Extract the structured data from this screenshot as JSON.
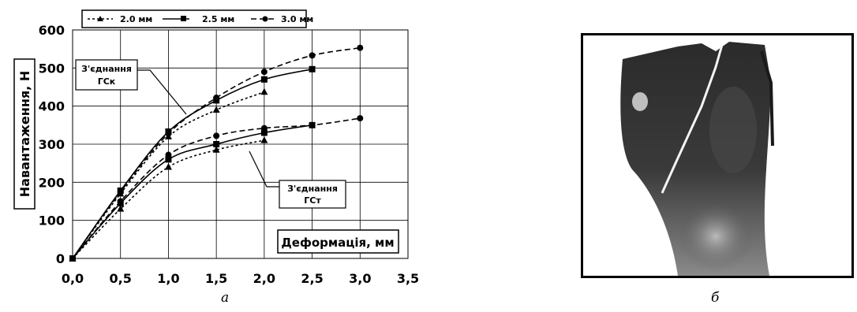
{
  "chart_data": {
    "type": "line",
    "xlabel": "Деформація, мм",
    "ylabel": "Навантаження, Н",
    "xlim": [
      0,
      3.5
    ],
    "ylim": [
      0,
      600
    ],
    "x_ticks": [
      "0,0",
      "0,5",
      "1,0",
      "1,5",
      "2,0",
      "2,5",
      "3,0",
      "3,5"
    ],
    "y_ticks": [
      "0",
      "100",
      "200",
      "300",
      "400",
      "500",
      "600"
    ],
    "grid": true,
    "legend_position": "top",
    "legend": [
      "2.0 мм",
      "2.5 мм",
      "3.0 мм"
    ],
    "annotations": [
      {
        "line1": "З'єднання",
        "line2": "ГСк"
      },
      {
        "line1": "З'єднання",
        "line2": "ГСт"
      }
    ],
    "series": [
      {
        "name": "2.0 мм",
        "group": "ГСк",
        "marker": "triangle",
        "dash": "dotted",
        "x": [
          0,
          0.5,
          1.0,
          1.5,
          2.0
        ],
        "values": [
          0,
          170,
          320,
          390,
          437
        ]
      },
      {
        "name": "2.5 мм",
        "group": "ГСк",
        "marker": "square",
        "dash": "solid",
        "x": [
          0,
          0.5,
          1.0,
          1.5,
          2.0,
          2.5
        ],
        "values": [
          0,
          178,
          333,
          415,
          470,
          497
        ]
      },
      {
        "name": "3.0 мм",
        "group": "ГСк",
        "marker": "circle",
        "dash": "dashed",
        "x": [
          0,
          0.5,
          1.0,
          1.5,
          2.0,
          2.5,
          3.0
        ],
        "values": [
          0,
          175,
          328,
          422,
          490,
          533,
          553
        ]
      },
      {
        "name": "2.0 мм",
        "group": "ГСт",
        "marker": "triangle",
        "dash": "dotted",
        "x": [
          0,
          0.5,
          1.0,
          1.5,
          2.0
        ],
        "values": [
          0,
          130,
          240,
          285,
          310
        ]
      },
      {
        "name": "2.5 мм",
        "group": "ГСт",
        "marker": "square",
        "dash": "solid",
        "x": [
          0,
          0.5,
          1.0,
          1.5,
          2.0,
          2.5
        ],
        "values": [
          0,
          145,
          260,
          300,
          330,
          350
        ]
      },
      {
        "name": "3.0 мм",
        "group": "ГСт",
        "marker": "circle",
        "dash": "dashed",
        "x": [
          0,
          0.5,
          1.0,
          1.5,
          2.0,
          2.5,
          3.0
        ],
        "values": [
          0,
          150,
          272,
          322,
          342,
          350,
          368
        ]
      }
    ]
  },
  "captions": {
    "left": "а",
    "right": "б"
  }
}
